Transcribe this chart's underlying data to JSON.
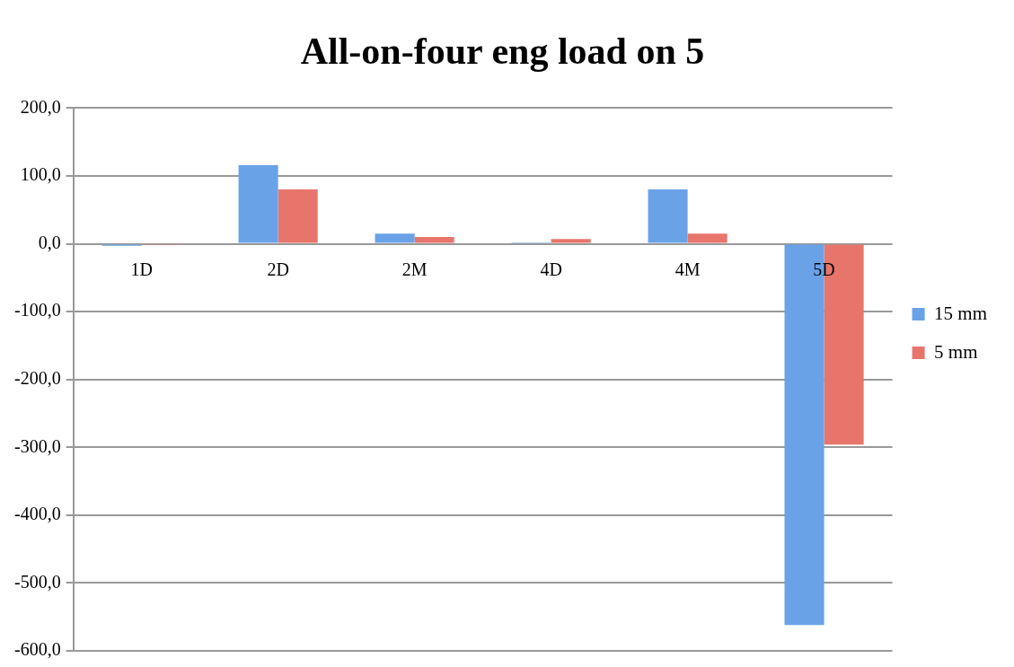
{
  "chart_data": {
    "type": "bar",
    "title": "All-on-four eng load on 5",
    "categories": [
      "1D",
      "2D",
      "2M",
      "4D",
      "4M",
      "5D"
    ],
    "series": [
      {
        "name": "15 mm",
        "color": "#6aa2e8",
        "values": [
          -3,
          116,
          15,
          2,
          80,
          -562
        ]
      },
      {
        "name": "5 mm",
        "color": "#e8756b",
        "values": [
          -1,
          80,
          10,
          7,
          15,
          -296
        ]
      }
    ],
    "ylim": [
      -600,
      200
    ],
    "yticks": [
      {
        "value": -600,
        "label": "-600,0"
      },
      {
        "value": -500,
        "label": "-500,0"
      },
      {
        "value": -400,
        "label": "-400,0"
      },
      {
        "value": -300,
        "label": "-300,0"
      },
      {
        "value": -200,
        "label": "-200,0"
      },
      {
        "value": -100,
        "label": "-100,0"
      },
      {
        "value": 0,
        "label": "0,0"
      },
      {
        "value": 100,
        "label": "100,0"
      },
      {
        "value": 200,
        "label": "200,0"
      }
    ],
    "grid": "y",
    "legend": "right"
  }
}
